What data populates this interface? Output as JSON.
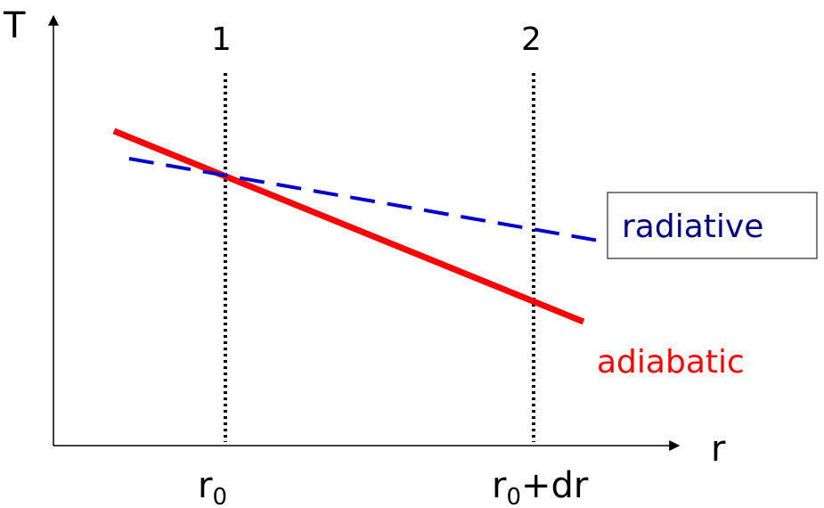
{
  "axes": {
    "y_label": "T",
    "x_label": "r"
  },
  "markers": [
    {
      "number": "1",
      "tick_main": "r",
      "tick_sub": "0",
      "tick_rest": ""
    },
    {
      "number": "2",
      "tick_main": "r",
      "tick_sub": "0",
      "tick_rest": "+dr"
    }
  ],
  "curves": {
    "adiabatic": {
      "label": "adiabatic",
      "color": "#ff0000",
      "style": "solid"
    },
    "radiative": {
      "label": "radiative",
      "color": "#0000cc",
      "style": "dashed",
      "label_color": "#000080"
    }
  },
  "colors": {
    "axis": "#000000",
    "marker_line": "#000000"
  }
}
